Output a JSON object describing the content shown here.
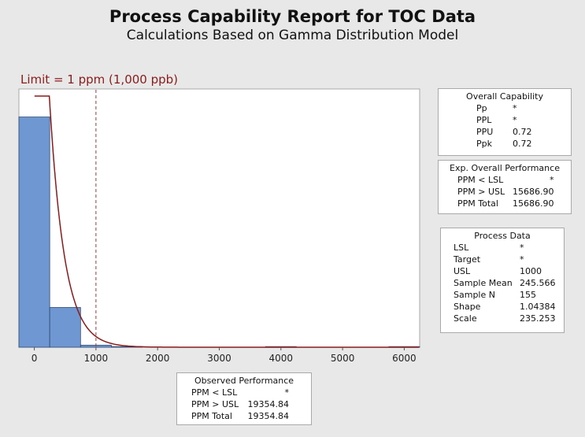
{
  "chart_data": {
    "type": "histogram",
    "title": "Process Capability Report for TOC Data",
    "subtitle": "Calculations Based on Gamma Distribution Model",
    "limit_label": "Limit = 1 ppm (1,000 ppb)",
    "x_ticks": [
      0,
      1000,
      2000,
      3000,
      4000,
      5000,
      6000
    ],
    "xlim": [
      -250,
      6250
    ],
    "ylim": [
      0,
      120
    ],
    "bins": [
      {
        "from": -250,
        "to": 250,
        "count": 110
      },
      {
        "from": 250,
        "to": 750,
        "count": 19
      },
      {
        "from": 750,
        "to": 1250,
        "count": 1
      },
      {
        "from": 1250,
        "to": 1750,
        "count": 0.3
      },
      {
        "from": 3750,
        "to": 4250,
        "count": 0.3
      },
      {
        "from": 5750,
        "to": 6250,
        "count": 0.3
      }
    ],
    "usl": 1000,
    "fit": {
      "distribution": "gamma",
      "shape": 1.04384,
      "scale": 235.253,
      "n": 155,
      "bin_width": 500
    },
    "colors": {
      "bars": "#6f98d2",
      "bar_edge": "#2e4a73",
      "curve": "#8b1a1a",
      "usl_line": "#a33a3a"
    }
  },
  "overall_capability": {
    "title": "Overall Capability",
    "rows": [
      {
        "k": "Pp",
        "v": "*"
      },
      {
        "k": "PPL",
        "v": "*"
      },
      {
        "k": "PPU",
        "v": "0.72"
      },
      {
        "k": "Ppk",
        "v": "0.72"
      }
    ]
  },
  "exp_overall_performance": {
    "title": "Exp. Overall Performance",
    "rows": [
      {
        "k": "PPM < LSL",
        "v": "*"
      },
      {
        "k": "PPM > USL",
        "v": "15686.90"
      },
      {
        "k": "PPM Total",
        "v": "15686.90"
      }
    ]
  },
  "process_data": {
    "title": "Process Data",
    "rows": [
      {
        "k": "LSL",
        "v": "*"
      },
      {
        "k": "Target",
        "v": "*"
      },
      {
        "k": "USL",
        "v": "1000"
      },
      {
        "k": "Sample Mean",
        "v": "245.566"
      },
      {
        "k": "Sample N",
        "v": "155"
      },
      {
        "k": "Shape",
        "v": "1.04384"
      },
      {
        "k": "Scale",
        "v": "235.253"
      }
    ]
  },
  "observed_performance": {
    "title": "Observed Performance",
    "rows": [
      {
        "k": "PPM < LSL",
        "v": "*"
      },
      {
        "k": "PPM > USL",
        "v": "19354.84"
      },
      {
        "k": "PPM Total",
        "v": "19354.84"
      }
    ]
  }
}
